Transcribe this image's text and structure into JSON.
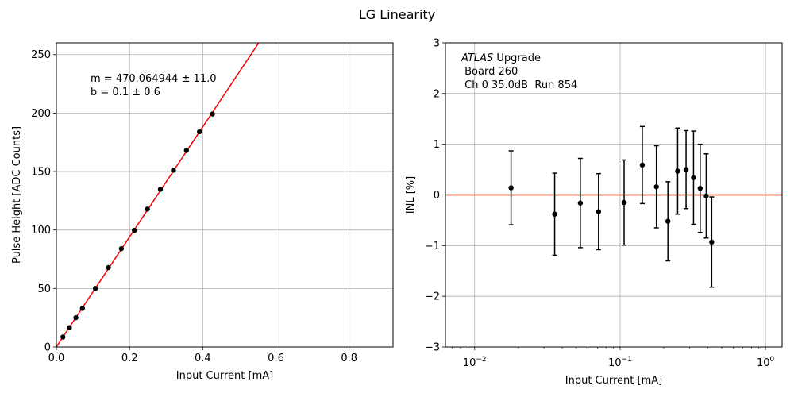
{
  "figure_title": "LG Linearity",
  "colors": {
    "fit_line": "#ff0000",
    "points": "#000000",
    "grid": "#b0b0b0",
    "zero_line": "#ff0000"
  },
  "chart_data": [
    {
      "type": "scatter",
      "title": "",
      "xlabel": "Input Current [mA]",
      "ylabel": "Pulse Height [ADC Counts]",
      "xlim": [
        0,
        0.92
      ],
      "ylim": [
        0,
        260
      ],
      "xticks": [
        0.0,
        0.2,
        0.4,
        0.6,
        0.8
      ],
      "xtick_labels": [
        "0.0",
        "0.2",
        "0.4",
        "0.6",
        "0.8"
      ],
      "yticks": [
        0,
        50,
        100,
        150,
        200,
        250
      ],
      "ytick_labels": [
        "0",
        "50",
        "100",
        "150",
        "200",
        "250"
      ],
      "grid": true,
      "annotation": {
        "line1": "m = 470.064944 ± 11.0",
        "line2": "b = 0.1 ± 0.6"
      },
      "fit": {
        "slope": 470.064944,
        "intercept": 0.1
      },
      "x": [
        0.0178,
        0.0355,
        0.0533,
        0.0711,
        0.1066,
        0.1422,
        0.1777,
        0.2133,
        0.2488,
        0.2843,
        0.3199,
        0.3554,
        0.391,
        0.4265
      ],
      "y": [
        8.5,
        16.5,
        25,
        33,
        50,
        67.9,
        84.1,
        99.7,
        117.9,
        134.8,
        151.1,
        168.0,
        184.0,
        199.2
      ]
    },
    {
      "type": "scatter",
      "title": "",
      "xlabel": "Input Current [mA]",
      "ylabel": "INL [%]",
      "xscale": "log",
      "xlim": [
        0.0063,
        1.3
      ],
      "ylim": [
        -3,
        3
      ],
      "xticks": [
        0.01,
        0.1,
        1
      ],
      "xtick_labels": [
        "10",
        "10",
        "10"
      ],
      "xtick_exponents": [
        "−2",
        "−1",
        "0"
      ],
      "yticks": [
        -3,
        -2,
        -1,
        0,
        1,
        2,
        3
      ],
      "ytick_labels": [
        "−3",
        "−2",
        "−1",
        "0",
        "1",
        "2",
        "3"
      ],
      "grid": true,
      "reference_line": 0,
      "annotation": {
        "line1_italic": "ATLAS",
        "line1_rest": " Upgrade",
        "line2": " Board 260",
        "line3": " Ch 0 35.0dB  Run 854"
      },
      "x": [
        0.0178,
        0.0355,
        0.0533,
        0.0711,
        0.1066,
        0.1422,
        0.1777,
        0.2133,
        0.2488,
        0.2843,
        0.3199,
        0.3554,
        0.391,
        0.4265
      ],
      "y": [
        0.14,
        -0.38,
        -0.16,
        -0.33,
        -0.15,
        0.59,
        0.16,
        -0.52,
        0.47,
        0.5,
        0.34,
        0.13,
        -0.02,
        -0.93
      ],
      "err": [
        0.73,
        0.81,
        0.88,
        0.75,
        0.84,
        0.76,
        0.81,
        0.78,
        0.85,
        0.77,
        0.92,
        0.87,
        0.83,
        0.89
      ]
    }
  ]
}
